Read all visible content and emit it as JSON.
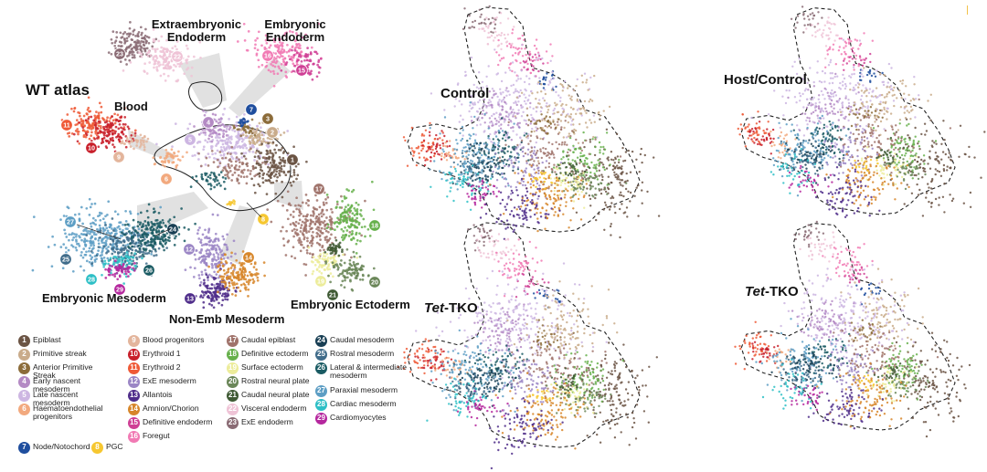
{
  "labels": {
    "wt_atlas": "WT atlas",
    "blood": "Blood",
    "extraembryonic_endoderm": "Extraembryonic\nEndoderm",
    "embryonic_endoderm": "Embryonic\nEndoderm",
    "embryonic_mesoderm": "Embryonic Mesoderm",
    "non_emb_mesoderm": "Non-Emb Mesoderm",
    "embryonic_ectoderm": "Embryonic Ectoderm",
    "control": "Control",
    "tet_tko_prefix": "Tet",
    "tet_tko_suffix": "-TKO",
    "host_control": "Host/Control"
  },
  "cell_types": [
    {
      "n": "1",
      "name": "Epiblast",
      "color": "#6b5444"
    },
    {
      "n": "2",
      "name": "Primitive streak",
      "color": "#c9ab8a"
    },
    {
      "n": "3",
      "name": "Anterior Primitive Streak",
      "color": "#8c6c3a"
    },
    {
      "n": "4",
      "name": "Early nascent mesoderm",
      "color": "#b48ac4"
    },
    {
      "n": "5",
      "name": "Late nascent mesoderm",
      "color": "#cdb6e2"
    },
    {
      "n": "6",
      "name": "Haematoendothelial progenitors",
      "color": "#f2a97e"
    },
    {
      "n": "7",
      "name": "Node/Notochord",
      "color": "#1f4e9e"
    },
    {
      "n": "8",
      "name": "PGC",
      "color": "#f6c730"
    },
    {
      "n": "9",
      "name": "Blood progenitors",
      "color": "#e3b59c"
    },
    {
      "n": "10",
      "name": "Erythroid 1",
      "color": "#c81f2a"
    },
    {
      "n": "11",
      "name": "Erythroid 2",
      "color": "#ef5a37"
    },
    {
      "n": "12",
      "name": "ExE mesoderm",
      "color": "#9b86c5"
    },
    {
      "n": "13",
      "name": "Allantois",
      "color": "#4f2d8a"
    },
    {
      "n": "14",
      "name": "Amnion/Chorion",
      "color": "#d7862a"
    },
    {
      "n": "15",
      "name": "Definitive endoderm",
      "color": "#cf3f95"
    },
    {
      "n": "16",
      "name": "Foregut",
      "color": "#f17ab4"
    },
    {
      "n": "17",
      "name": "Caudal epiblast",
      "color": "#a0736b"
    },
    {
      "n": "18",
      "name": "Definitive ectoderm",
      "color": "#66b04b"
    },
    {
      "n": "19",
      "name": "Surface ectoderm",
      "color": "#ecec9a"
    },
    {
      "n": "20",
      "name": "Rostral neural plate",
      "color": "#6a8658"
    },
    {
      "n": "21",
      "name": "Caudal neural plate",
      "color": "#3f5a34"
    },
    {
      "n": "22",
      "name": "Visceral endoderm",
      "color": "#efc3d6"
    },
    {
      "n": "23",
      "name": "ExE endoderm",
      "color": "#8a6b74"
    },
    {
      "n": "24",
      "name": "Caudal mesoderm",
      "color": "#193f54"
    },
    {
      "n": "25",
      "name": "Rostral mesoderm",
      "color": "#406c8a"
    },
    {
      "n": "26",
      "name": "Lateral & intermediate mesoderm",
      "color": "#1a5b63"
    },
    {
      "n": "27",
      "name": "Paraxial mesoderm",
      "color": "#5d9ec4"
    },
    {
      "n": "28",
      "name": "Cardiac mesoderm",
      "color": "#2dbfc6"
    },
    {
      "n": "29",
      "name": "Cardiomyocytes",
      "color": "#b5279e"
    }
  ]
}
